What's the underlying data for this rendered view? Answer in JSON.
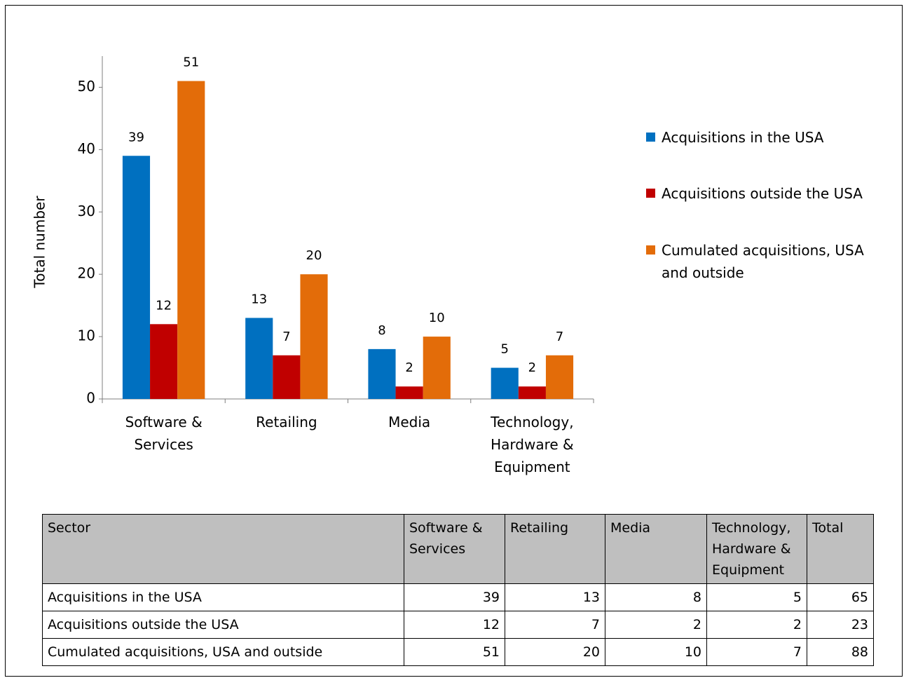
{
  "chart_data": {
    "type": "bar",
    "y_label": "Total number",
    "categories": [
      "Software & Services",
      "Retailing",
      "Media",
      "Technology, Hardware & Equipment"
    ],
    "series": [
      {
        "name": "Acquisitions in the USA",
        "color": "#0070c0",
        "values": [
          39,
          13,
          8,
          5
        ]
      },
      {
        "name": "Acquisitions outside the USA",
        "color": "#c00000",
        "values": [
          12,
          7,
          2,
          2
        ]
      },
      {
        "name": "Cumulated acquisitions, USA and outside",
        "color": "#e36c09",
        "values": [
          51,
          20,
          10,
          7
        ]
      }
    ],
    "ylim": [
      0,
      55
    ],
    "yticks": [
      0,
      10,
      20,
      30,
      40,
      50
    ],
    "grid": false,
    "legend": "right",
    "data_labels": true
  },
  "table": {
    "header": [
      "Sector",
      "Software & Services",
      "Retailing",
      "Media",
      "Technology, Hardware & Equipment",
      "Total"
    ],
    "rows": [
      [
        "Acquisitions in the USA",
        "39",
        "13",
        "8",
        "5",
        "65"
      ],
      [
        "Acquisitions outside the USA",
        "12",
        "7",
        "2",
        "2",
        "23"
      ],
      [
        "Cumulated acquisitions, USA and outside",
        "51",
        "20",
        "10",
        "7",
        "88"
      ]
    ]
  }
}
